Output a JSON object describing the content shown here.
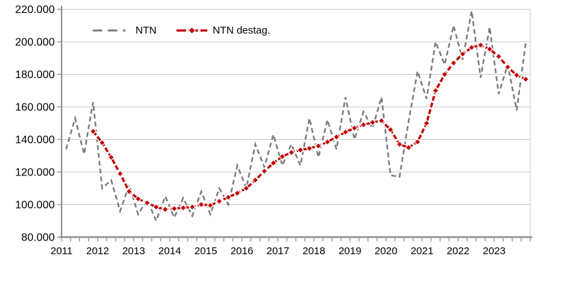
{
  "figure": {
    "background_color": "#ffffff",
    "grid_color": "#c9c9c9",
    "axis_color": "#8f8f8f",
    "text_color": "#000000"
  },
  "legend": {
    "position": "top-inside",
    "items": [
      {
        "label": "NTN",
        "color": "#7a7a7a",
        "line_style": "dashed",
        "marker": "none"
      },
      {
        "label": "NTN destag.",
        "color": "#c00000",
        "line_style": "thick-dashed",
        "marker": "diamond"
      }
    ]
  },
  "chart_data": {
    "type": "line",
    "title": "",
    "xlabel": "",
    "ylabel": "",
    "grid": "horizontal",
    "legend_position": "top-inside",
    "x_axis": {
      "tick_labels": [
        "2011",
        "2012",
        "2013",
        "2014",
        "2015",
        "2016",
        "2017",
        "2018",
        "2019",
        "2020",
        "2021",
        "2022",
        "2023"
      ],
      "points_per_year": 4,
      "total_points": 52,
      "frequency": "quarterly"
    },
    "y_axis": {
      "min": 80000,
      "max": 220000,
      "step": 20000,
      "tick_labels": [
        "80.000",
        "100.000",
        "120.000",
        "140.000",
        "160.000",
        "180.000",
        "200.000",
        "220.000"
      ]
    },
    "series": [
      {
        "name": "NTN",
        "color": "#7a7a7a",
        "style": "dashed",
        "marker": "none",
        "start_point_index": 0,
        "values": [
          134000,
          153000,
          131000,
          163000,
          110000,
          115000,
          96000,
          112000,
          94000,
          103000,
          90000,
          105000,
          92000,
          104000,
          93000,
          108000,
          94000,
          110000,
          100000,
          124000,
          110000,
          137000,
          123000,
          143000,
          124000,
          137000,
          124000,
          153000,
          129000,
          152000,
          134000,
          166000,
          140000,
          157000,
          147000,
          166000,
          118000,
          117000,
          151000,
          182000,
          165000,
          200000,
          186000,
          210000,
          189000,
          219000,
          178000,
          209000,
          168000,
          186000,
          158000,
          199000
        ]
      },
      {
        "name": "NTN destag.",
        "color": "#c00000",
        "style": "thick-dashed",
        "marker": "diamond",
        "start_point_index": 3,
        "values": [
          145000,
          138000,
          129000,
          119000,
          108000,
          103500,
          101000,
          98500,
          97000,
          97500,
          98000,
          98500,
          100000,
          99500,
          102000,
          104500,
          107000,
          110000,
          115000,
          120500,
          125500,
          129500,
          132000,
          133500,
          134500,
          136000,
          138500,
          141500,
          144500,
          147000,
          149000,
          150500,
          151500,
          146000,
          137000,
          135000,
          138500,
          150000,
          170000,
          180000,
          187000,
          192500,
          196500,
          198000,
          195500,
          191000,
          184500,
          179500,
          177000
        ]
      }
    ]
  }
}
